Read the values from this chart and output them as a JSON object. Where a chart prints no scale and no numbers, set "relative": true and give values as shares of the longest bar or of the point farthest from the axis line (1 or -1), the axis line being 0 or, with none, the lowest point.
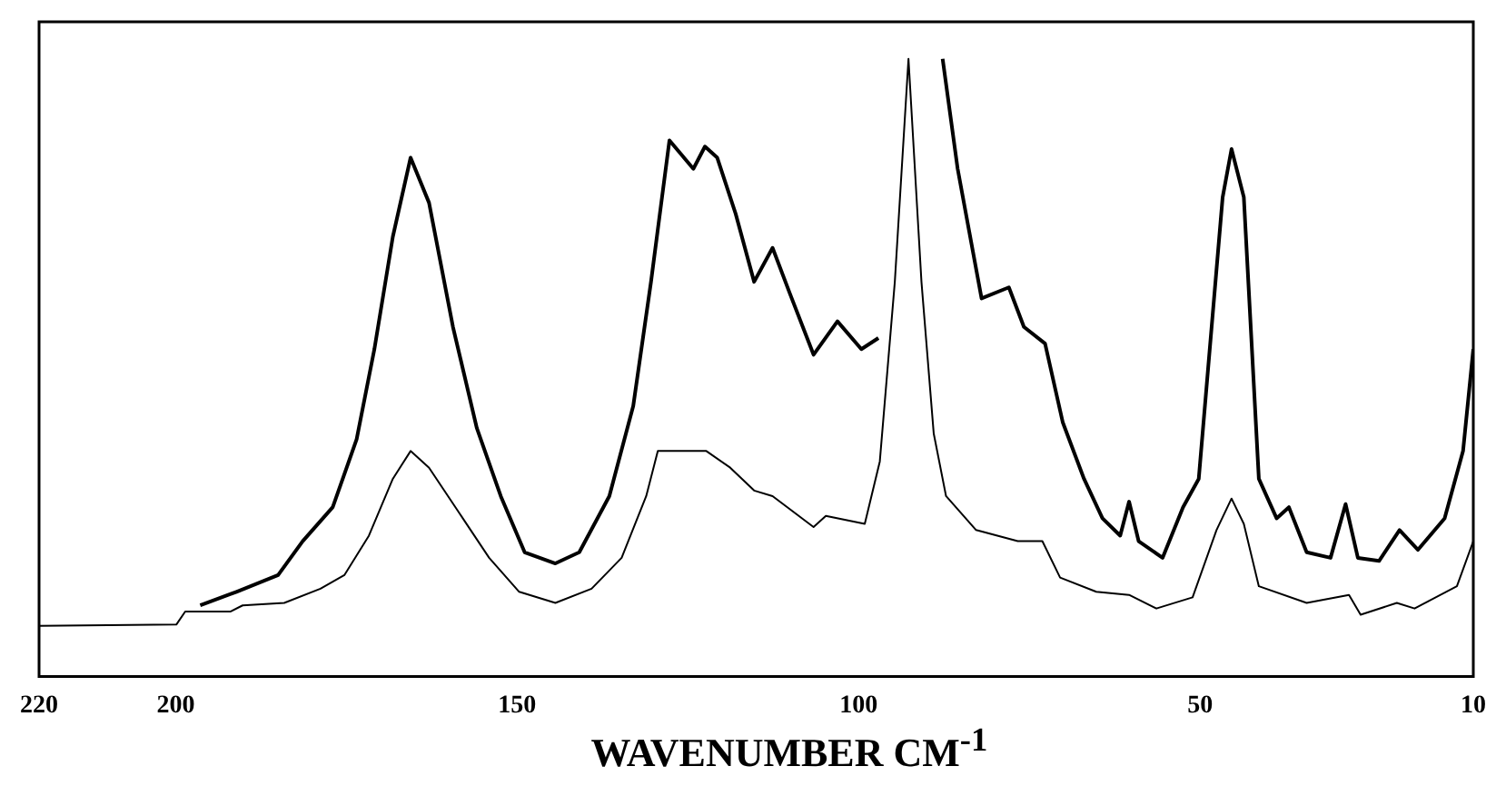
{
  "chart_data": {
    "type": "line",
    "xlabel": "WAVENUMBER CM$^{-1}$",
    "relative": true,
    "xlim": [
      220,
      10
    ],
    "xticks": [
      220,
      200,
      150,
      100,
      50,
      10
    ],
    "grid": false,
    "legend": false,
    "marker": "none",
    "line_style": "solid",
    "series": [
      {
        "color": "#000000",
        "x": [
          196.4,
          191.1,
          185,
          181.4,
          177,
          173.5,
          170.9,
          168.2,
          165.6,
          162.9,
          159.4,
          155.9,
          152.4,
          148.9,
          144.4,
          140.9,
          136.5,
          133,
          130.4,
          127.7,
          124.2,
          122.5,
          120.7,
          118,
          115.3,
          112.6,
          110.1,
          106.6,
          103.1,
          99.6,
          97.1,
          94,
          90,
          87.7,
          85.5,
          82,
          78,
          75.8,
          72.7,
          70.1,
          67,
          64.3,
          61.7,
          60.4,
          59,
          55.5,
          52.5,
          50.2,
          46.7,
          45.4,
          43.6,
          41.4,
          38.8,
          37,
          34.4,
          30.9,
          28.7,
          26.9,
          23.8,
          20.8,
          18.1,
          14.2,
          11.5,
          10
        ],
        "values": [
          0.115,
          0.137,
          0.164,
          0.219,
          0.274,
          0.384,
          0.53,
          0.712,
          0.84,
          0.767,
          0.566,
          0.402,
          0.292,
          0.201,
          0.183,
          0.201,
          0.292,
          0.438,
          0.639,
          0.868,
          0.822,
          0.858,
          0.84,
          0.749,
          0.639,
          0.694,
          0.621,
          0.521,
          0.575,
          0.53,
          0.548,
          null,
          null,
          1,
          0.822,
          0.612,
          0.63,
          0.566,
          0.539,
          0.411,
          0.32,
          0.256,
          0.228,
          0.283,
          0.219,
          0.192,
          0.274,
          0.32,
          0.776,
          0.854,
          0.776,
          0.32,
          0.256,
          0.274,
          0.201,
          0.192,
          0.279,
          0.192,
          0.187,
          0.237,
          0.205,
          0.256,
          0.365,
          0.53
        ]
      },
      {
        "color": "#000000",
        "x": [
          220,
          199.9,
          198.6,
          192,
          190.2,
          184.1,
          178.8,
          175.3,
          171.7,
          168.2,
          165.6,
          162.9,
          158.5,
          154.1,
          149.7,
          144.4,
          139.1,
          134.7,
          131.1,
          129.4,
          122.3,
          118.8,
          115.3,
          112.6,
          106.6,
          104.8,
          99.1,
          96.9,
          94.7,
          92.7,
          90.8,
          89,
          87.2,
          82.8,
          76.7,
          73.1,
          70.5,
          65.2,
          60.4,
          56.4,
          51.1,
          47.6,
          45.4,
          43.6,
          41.4,
          34.4,
          28.2,
          26.5,
          21.2,
          18.6,
          12.4,
          10
        ],
        "values": [
          0.082,
          0.084,
          0.105,
          0.105,
          0.115,
          0.119,
          0.142,
          0.164,
          0.228,
          0.32,
          0.365,
          0.338,
          0.265,
          0.192,
          0.137,
          0.119,
          0.142,
          0.192,
          0.292,
          0.365,
          0.365,
          0.338,
          0.301,
          0.292,
          0.242,
          0.26,
          0.247,
          0.348,
          0.639,
          1,
          0.639,
          0.393,
          0.292,
          0.237,
          0.219,
          0.219,
          0.16,
          0.137,
          0.132,
          0.11,
          0.128,
          0.237,
          0.288,
          0.247,
          0.146,
          0.119,
          0.132,
          0.1,
          0.119,
          0.11,
          0.146,
          0.219
        ]
      }
    ]
  }
}
